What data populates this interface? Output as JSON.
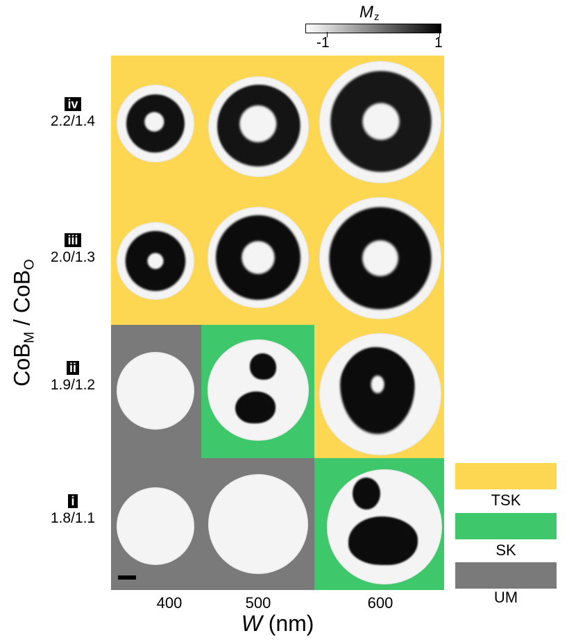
{
  "colorbar": {
    "title": "M",
    "title_sub": "z",
    "min_label": "-1",
    "max_label": "1"
  },
  "y_axis": {
    "label_main": "CoB",
    "label_sub1": "M",
    "label_sep": " / CoB",
    "label_sub2": "O"
  },
  "x_axis": {
    "title_var": "W",
    "title_unit": " (nm)",
    "ticks": [
      "400",
      "500",
      "600"
    ]
  },
  "rows": [
    {
      "roman": "iv",
      "ratio": "2.2/1.4"
    },
    {
      "roman": "iii",
      "ratio": "2.0/1.3"
    },
    {
      "roman": "ii",
      "ratio": "1.9/1.2"
    },
    {
      "roman": "i",
      "ratio": "1.8/1.1"
    }
  ],
  "phases": [
    {
      "label": "TSK",
      "color": "#fdd751"
    },
    {
      "label": "SK",
      "color": "#3ec86b"
    },
    {
      "label": "UM",
      "color": "#7a7a7a"
    }
  ],
  "phase_map": [
    [
      "TSK",
      "TSK",
      "TSK"
    ],
    [
      "TSK",
      "TSK",
      "TSK"
    ],
    [
      "UM",
      "SK",
      "TSK"
    ],
    [
      "UM",
      "UM",
      "SK"
    ]
  ]
}
